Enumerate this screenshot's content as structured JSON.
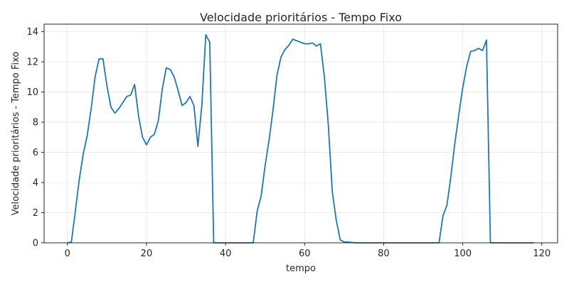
{
  "chart_data": {
    "type": "line",
    "title": "Velocidade prioritários - Tempo Fixo",
    "xlabel": "tempo",
    "ylabel": "Velocidade prioritários - Tempo Fixo",
    "xlim": [
      -5.9,
      124
    ],
    "ylim": [
      0,
      14.5
    ],
    "xticks": [
      0,
      20,
      40,
      60,
      80,
      100,
      120
    ],
    "yticks": [
      0,
      2,
      4,
      6,
      8,
      10,
      12,
      14
    ],
    "grid": true,
    "line_color": "#1f77b4",
    "series": [
      {
        "x": [
          0,
          1,
          2,
          3,
          4,
          5,
          6,
          7,
          8,
          9,
          10,
          11,
          12,
          13,
          14,
          15,
          16,
          17,
          18,
          19,
          20,
          21,
          22,
          23,
          24,
          25,
          26,
          27,
          28,
          29,
          30,
          31,
          32,
          33,
          34,
          35,
          36,
          37,
          38,
          39,
          40,
          41,
          42,
          43,
          44,
          45,
          46,
          47,
          48,
          49,
          50,
          51,
          52,
          53,
          54,
          55,
          56,
          57,
          58,
          59,
          60,
          61,
          62,
          63,
          64,
          65,
          66,
          67,
          68,
          69,
          70,
          71,
          72,
          73,
          74,
          75,
          76,
          77,
          78,
          79,
          80,
          81,
          82,
          83,
          84,
          85,
          86,
          87,
          88,
          89,
          90,
          91,
          92,
          93,
          94,
          95,
          96,
          97,
          98,
          99,
          100,
          101,
          102,
          103,
          104,
          105,
          106,
          107,
          108,
          109,
          110,
          111,
          112,
          113,
          114,
          115,
          116,
          117,
          118
        ],
        "values": [
          0,
          0.05,
          2.1,
          4.2,
          5.9,
          7.1,
          8.9,
          11.0,
          12.2,
          12.2,
          10.4,
          9.0,
          8.6,
          8.9,
          9.3,
          9.7,
          9.8,
          10.5,
          8.4,
          7.0,
          6.5,
          7.0,
          7.2,
          8.1,
          10.2,
          11.6,
          11.5,
          11.0,
          10.1,
          9.1,
          9.3,
          9.7,
          9.1,
          6.4,
          9.1,
          13.8,
          13.3,
          0,
          0,
          0,
          0,
          0,
          0,
          0,
          0,
          0,
          0,
          0,
          2.1,
          3.1,
          5.1,
          6.8,
          8.8,
          11.1,
          12.3,
          12.8,
          13.1,
          13.5,
          13.4,
          13.3,
          13.2,
          13.2,
          13.25,
          13.05,
          13.2,
          11.0,
          7.8,
          3.4,
          1.5,
          0.2,
          0.05,
          0.05,
          0.02,
          0,
          0,
          0,
          0,
          0,
          0,
          0,
          0,
          0,
          0,
          0,
          0,
          0,
          0,
          0,
          0,
          0,
          0,
          0,
          0,
          0,
          0,
          1.8,
          2.5,
          4.4,
          6.6,
          8.5,
          10.3,
          11.7,
          12.7,
          12.75,
          12.9,
          12.75,
          13.45,
          0,
          0,
          0,
          0,
          0,
          0,
          0,
          0,
          0,
          0,
          0,
          0
        ]
      }
    ]
  }
}
